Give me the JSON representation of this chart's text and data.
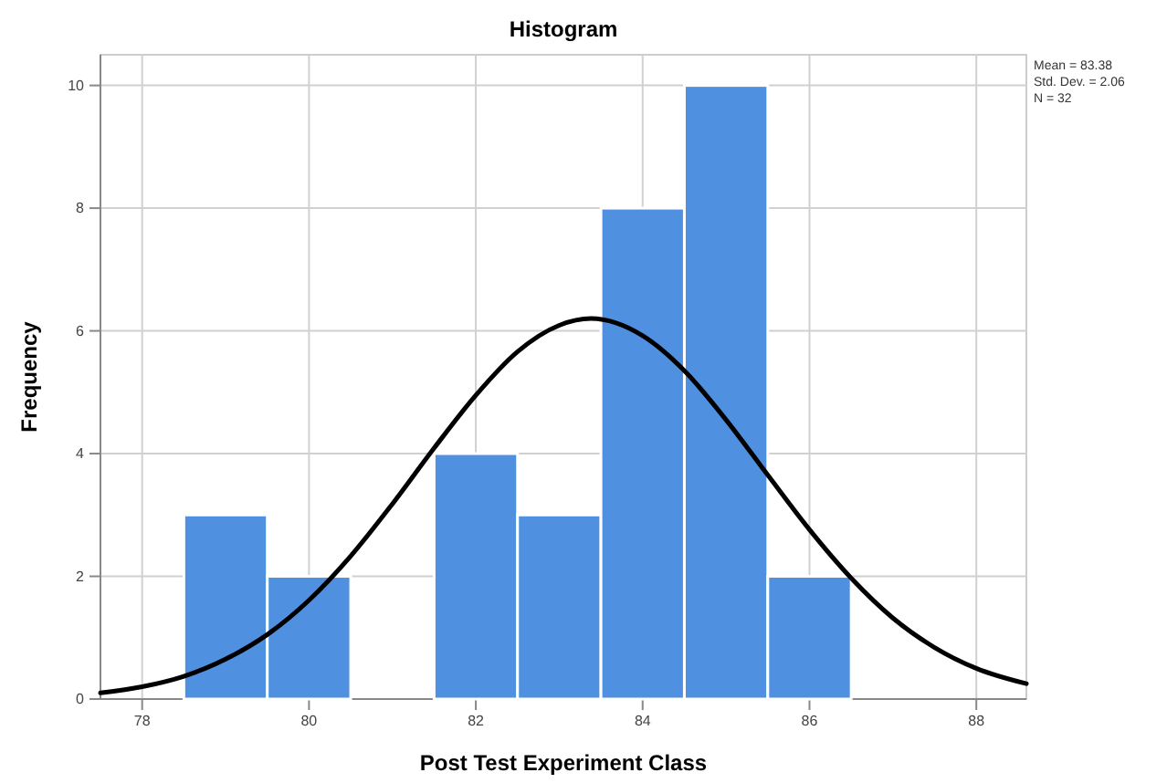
{
  "chart_data": {
    "type": "histogram",
    "title": "Histogram",
    "xlabel": "Post Test Experiment Class",
    "ylabel": "Frequency",
    "bins": [
      78.5,
      79.5,
      80.5,
      81.5,
      82.5,
      83.5,
      84.5,
      85.5,
      86.5
    ],
    "values": [
      3,
      2,
      0,
      4,
      3,
      8,
      10,
      2
    ],
    "color": "#5090e0",
    "series": [
      {
        "type": "line",
        "color": "#000000",
        "x": [
          77.5,
          78,
          78.5,
          79,
          79.5,
          80,
          80.5,
          81,
          81.5,
          82,
          82.5,
          83,
          83.38,
          84,
          84.5,
          85,
          85.5,
          86,
          86.5,
          87,
          87.5,
          88,
          88.6
        ],
        "values": [
          0.1,
          0.2,
          0.37,
          0.65,
          1.05,
          1.61,
          2.33,
          3.18,
          4.09,
          4.95,
          5.66,
          6.09,
          6.2,
          5.92,
          5.35,
          4.55,
          3.65,
          2.76,
          1.97,
          1.32,
          0.84,
          0.5,
          0.25
        ]
      }
    ],
    "xlim": [
      77.5,
      88.6
    ],
    "xticks": [
      78,
      80,
      82,
      84,
      86,
      88
    ],
    "ylim": [
      0,
      10.5
    ],
    "yticks": [
      0,
      2,
      4,
      6,
      8,
      10
    ],
    "grid": true,
    "annotations": [
      "Mean = 83.38",
      "Std. Dev. = 2.06",
      "N = 32"
    ]
  }
}
